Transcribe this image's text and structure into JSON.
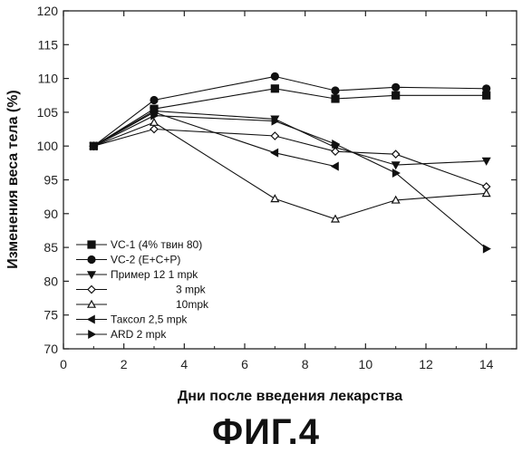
{
  "caption": "ФИГ.4",
  "chart_data": {
    "type": "line",
    "xlabel": "Дни после введения лекарства",
    "ylabel": "Изменения веса тела (%)",
    "xlim": [
      0,
      15
    ],
    "ylim": [
      70,
      120
    ],
    "xticks": [
      0,
      2,
      4,
      6,
      8,
      10,
      12,
      14
    ],
    "yticks": [
      70,
      75,
      80,
      85,
      90,
      95,
      100,
      105,
      110,
      115,
      120
    ],
    "grid": false,
    "legend_position": "bottom-left",
    "series": [
      {
        "name": "VC-1 (4% твин 80)",
        "marker": "square",
        "fill": "filled",
        "x": [
          1,
          3,
          7,
          9,
          11,
          14
        ],
        "values": [
          100,
          105.5,
          108.5,
          107,
          107.5,
          107.5
        ]
      },
      {
        "name": "VC-2 (E+C+P)",
        "marker": "circle",
        "fill": "filled",
        "x": [
          1,
          3,
          7,
          9,
          11,
          14
        ],
        "values": [
          100,
          106.8,
          110.3,
          108.2,
          108.7,
          108.5
        ]
      },
      {
        "name": "Пример 12  1 mpk",
        "marker": "triangle-down",
        "fill": "filled",
        "x": [
          1,
          3,
          7,
          9,
          11,
          14
        ],
        "values": [
          100,
          105.2,
          104,
          99.8,
          97.2,
          97.8
        ]
      },
      {
        "name": "3 mpk",
        "marker": "diamond",
        "fill": "open",
        "x": [
          1,
          3,
          7,
          9,
          11,
          14
        ],
        "values": [
          100,
          102.5,
          101.5,
          99.2,
          98.8,
          94
        ]
      },
      {
        "name": "10mpk",
        "marker": "triangle-up",
        "fill": "open",
        "x": [
          1,
          3,
          7,
          9,
          11,
          14
        ],
        "values": [
          100,
          103.5,
          92.2,
          89.2,
          92,
          93
        ]
      },
      {
        "name": "Таксол 2,5 mpk",
        "marker": "triangle-left",
        "fill": "filled",
        "x": [
          1,
          3,
          7,
          9
        ],
        "values": [
          100,
          105,
          99,
          97
        ]
      },
      {
        "name": "ARD 2 mpk",
        "marker": "triangle-right",
        "fill": "filled",
        "x": [
          1,
          3,
          7,
          9,
          11,
          14
        ],
        "values": [
          100,
          104.5,
          103.7,
          100.3,
          96,
          84.8
        ]
      }
    ]
  }
}
